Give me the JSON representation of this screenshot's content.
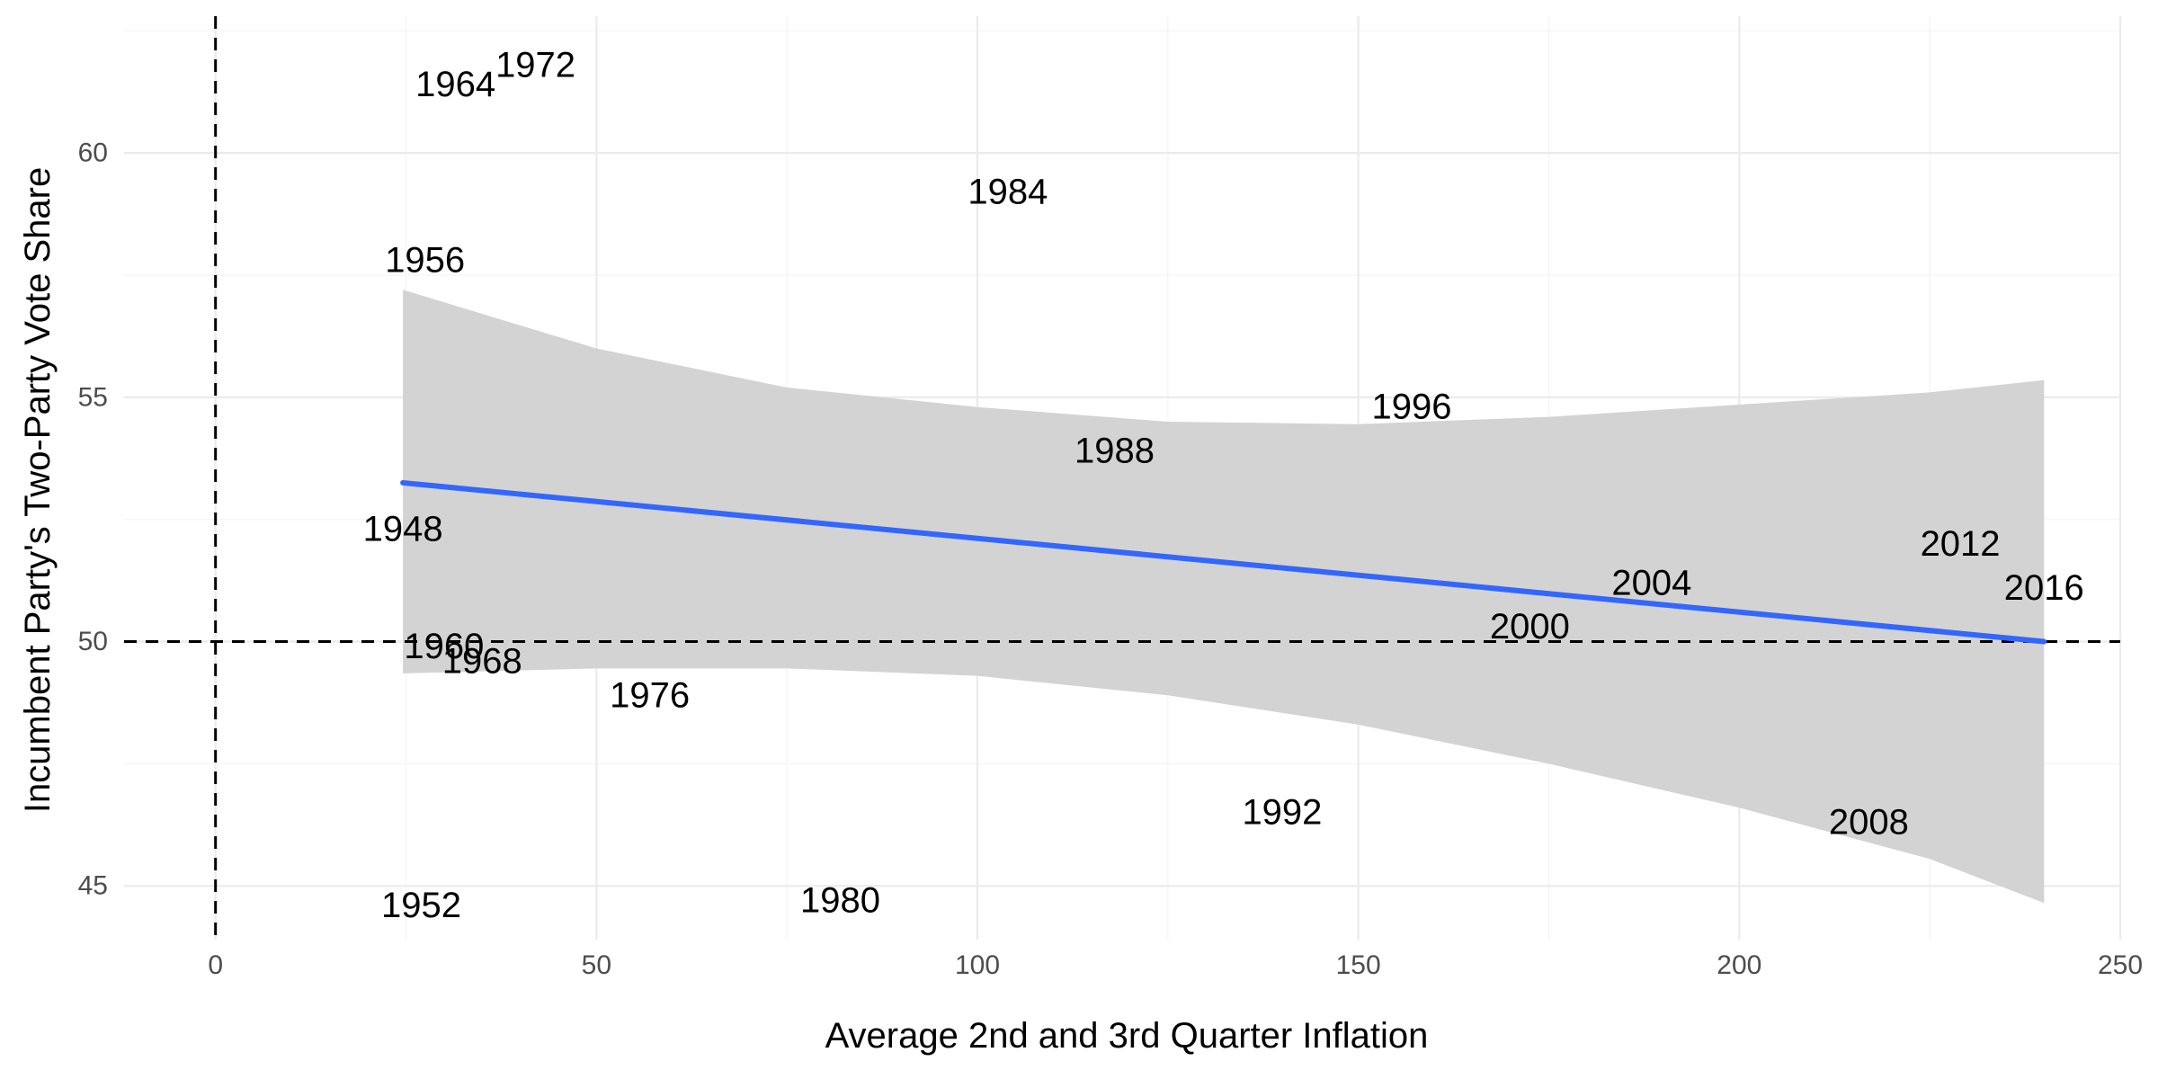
{
  "chart_data": {
    "type": "scatter",
    "title": "",
    "xlabel": "Average 2nd and 3rd Quarter Inflation",
    "ylabel": "Incumbent Party's Two-Party Vote Share",
    "xlim": [
      -12,
      250
    ],
    "ylim": [
      43.9,
      62.8
    ],
    "x_ticks": [
      0,
      50,
      100,
      150,
      200,
      250
    ],
    "y_ticks": [
      45,
      50,
      55,
      60
    ],
    "grid": true,
    "legend": "none",
    "reference_lines": {
      "x": 0,
      "y": 50
    },
    "points": [
      {
        "label": "1948",
        "x": 24.6,
        "y": 52.3
      },
      {
        "label": "1952",
        "x": 27.0,
        "y": 44.6
      },
      {
        "label": "1956",
        "x": 27.5,
        "y": 57.8
      },
      {
        "label": "1960",
        "x": 30.0,
        "y": 49.9
      },
      {
        "label": "1964",
        "x": 31.5,
        "y": 61.4
      },
      {
        "label": "1968",
        "x": 35.0,
        "y": 49.6
      },
      {
        "label": "1972",
        "x": 42.0,
        "y": 61.8
      },
      {
        "label": "1976",
        "x": 57.0,
        "y": 48.9
      },
      {
        "label": "1980",
        "x": 82.0,
        "y": 44.7
      },
      {
        "label": "1984",
        "x": 104.0,
        "y": 59.2
      },
      {
        "label": "1988",
        "x": 118.0,
        "y": 53.9
      },
      {
        "label": "1992",
        "x": 140.0,
        "y": 46.5
      },
      {
        "label": "1996",
        "x": 157.0,
        "y": 54.8
      },
      {
        "label": "2000",
        "x": 172.5,
        "y": 50.3
      },
      {
        "label": "2004",
        "x": 188.5,
        "y": 51.2
      },
      {
        "label": "2008",
        "x": 217.0,
        "y": 46.3
      },
      {
        "label": "2012",
        "x": 229.0,
        "y": 52.0
      },
      {
        "label": "2016",
        "x": 240.0,
        "y": 51.1
      }
    ],
    "fit_line": {
      "x": [
        24.6,
        240.0
      ],
      "y": [
        53.25,
        50.0
      ]
    },
    "confidence_band": {
      "x": [
        24.6,
        50,
        75,
        100,
        125,
        150,
        175,
        200,
        225,
        240.0
      ],
      "upper": [
        57.2,
        56.0,
        55.2,
        54.8,
        54.5,
        54.45,
        54.6,
        54.85,
        55.1,
        55.35
      ],
      "lower": [
        49.35,
        49.45,
        49.45,
        49.3,
        48.9,
        48.3,
        47.5,
        46.6,
        45.55,
        44.65
      ]
    },
    "colors": {
      "fit_line": "#3366ff",
      "band": "#d3d3d3",
      "grid_major": "#ebebeb",
      "grid_minor": "#f4f4f4",
      "reference": "#000000"
    }
  }
}
